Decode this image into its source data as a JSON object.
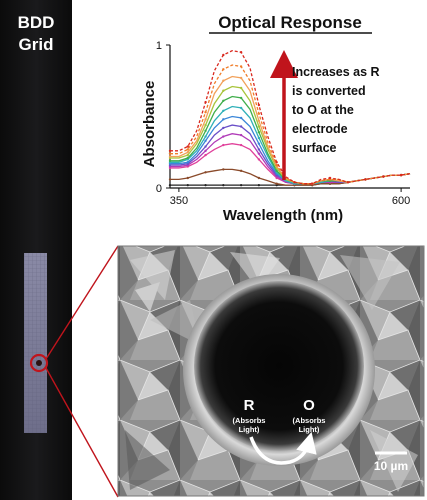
{
  "left_panel": {
    "title_line1": "BDD",
    "title_line2": "Grid"
  },
  "spectrum": {
    "title": "Optical Response",
    "ylabel": "Absorbance",
    "xlabel": "Wavelength (nm)",
    "annotation": [
      "Increases as R",
      "is converted",
      "to O at the",
      "electrode",
      "surface"
    ],
    "annotation_arrow_color": "#c0141c",
    "chart_data": {
      "type": "line",
      "xlabel": "Wavelength (nm)",
      "ylabel": "Absorbance",
      "title": "Optical Response",
      "x_tick_labels": [
        "350",
        "600"
      ],
      "y_tick_labels": [
        "0",
        "1"
      ],
      "xlim": [
        340,
        610
      ],
      "ylim": [
        0,
        1
      ],
      "x": [
        340,
        350,
        360,
        370,
        380,
        390,
        400,
        410,
        420,
        430,
        440,
        450,
        460,
        470,
        480,
        490,
        500,
        510,
        520,
        530,
        540,
        550,
        560,
        570,
        580,
        590,
        600,
        610
      ],
      "series": [
        {
          "color": "#d9281e",
          "values": [
            0.26,
            0.26,
            0.29,
            0.4,
            0.6,
            0.82,
            0.93,
            0.96,
            0.95,
            0.84,
            0.58,
            0.36,
            0.18,
            0.08,
            0.04,
            0.03,
            0.03,
            0.06,
            0.07,
            0.06,
            0.04,
            0.05,
            0.06,
            0.07,
            0.08,
            0.09,
            0.09,
            0.1
          ]
        },
        {
          "color": "#f07c28",
          "values": [
            0.24,
            0.24,
            0.27,
            0.36,
            0.53,
            0.73,
            0.83,
            0.86,
            0.85,
            0.75,
            0.52,
            0.32,
            0.16,
            0.07,
            0.04,
            0.03,
            0.03,
            0.05,
            0.06,
            0.06,
            0.04,
            0.05,
            0.06,
            0.07,
            0.08,
            0.09,
            0.09,
            0.1
          ]
        },
        {
          "color": "#f2a15a",
          "values": [
            0.22,
            0.22,
            0.25,
            0.33,
            0.48,
            0.66,
            0.75,
            0.78,
            0.77,
            0.68,
            0.47,
            0.29,
            0.15,
            0.07,
            0.04,
            0.03,
            0.03,
            0.05,
            0.06,
            0.05,
            0.04,
            0.05,
            0.06,
            0.07,
            0.08,
            0.09,
            0.09,
            0.1
          ]
        },
        {
          "color": "#a8c43a",
          "values": [
            0.21,
            0.21,
            0.23,
            0.31,
            0.44,
            0.59,
            0.68,
            0.71,
            0.7,
            0.61,
            0.43,
            0.27,
            0.14,
            0.06,
            0.04,
            0.03,
            0.03,
            0.05,
            0.06,
            0.05,
            0.04,
            0.05,
            0.06,
            0.07,
            0.08,
            0.09,
            0.09,
            0.1
          ]
        },
        {
          "color": "#3fae4a",
          "values": [
            0.19,
            0.19,
            0.21,
            0.28,
            0.4,
            0.53,
            0.61,
            0.64,
            0.63,
            0.55,
            0.39,
            0.24,
            0.12,
            0.06,
            0.04,
            0.03,
            0.03,
            0.05,
            0.05,
            0.05,
            0.04,
            0.05,
            0.06,
            0.07,
            0.08,
            0.09,
            0.09,
            0.1
          ]
        },
        {
          "color": "#2fb0b8",
          "values": [
            0.18,
            0.18,
            0.2,
            0.26,
            0.36,
            0.47,
            0.54,
            0.57,
            0.56,
            0.49,
            0.35,
            0.22,
            0.11,
            0.05,
            0.03,
            0.03,
            0.03,
            0.04,
            0.05,
            0.05,
            0.04,
            0.05,
            0.06,
            0.07,
            0.08,
            0.09,
            0.09,
            0.1
          ]
        },
        {
          "color": "#3a86d8",
          "values": [
            0.17,
            0.17,
            0.18,
            0.24,
            0.33,
            0.42,
            0.48,
            0.5,
            0.49,
            0.43,
            0.31,
            0.19,
            0.1,
            0.05,
            0.03,
            0.03,
            0.03,
            0.04,
            0.05,
            0.05,
            0.04,
            0.05,
            0.06,
            0.07,
            0.08,
            0.09,
            0.09,
            0.1
          ]
        },
        {
          "color": "#6a4fc8",
          "values": [
            0.16,
            0.16,
            0.17,
            0.22,
            0.29,
            0.37,
            0.42,
            0.44,
            0.43,
            0.38,
            0.27,
            0.17,
            0.09,
            0.05,
            0.03,
            0.03,
            0.03,
            0.04,
            0.05,
            0.04,
            0.04,
            0.05,
            0.06,
            0.07,
            0.08,
            0.09,
            0.09,
            0.1
          ]
        },
        {
          "color": "#b03ab8",
          "values": [
            0.15,
            0.15,
            0.16,
            0.2,
            0.26,
            0.32,
            0.36,
            0.38,
            0.37,
            0.33,
            0.24,
            0.15,
            0.08,
            0.04,
            0.03,
            0.03,
            0.03,
            0.04,
            0.04,
            0.04,
            0.04,
            0.05,
            0.06,
            0.07,
            0.08,
            0.09,
            0.09,
            0.1
          ]
        },
        {
          "color": "#e0409a",
          "values": [
            0.14,
            0.14,
            0.15,
            0.18,
            0.23,
            0.27,
            0.3,
            0.31,
            0.3,
            0.27,
            0.2,
            0.13,
            0.07,
            0.04,
            0.03,
            0.03,
            0.03,
            0.04,
            0.04,
            0.04,
            0.04,
            0.05,
            0.06,
            0.07,
            0.08,
            0.09,
            0.09,
            0.1
          ]
        },
        {
          "color": "#8a4a2a",
          "values": [
            0.06,
            0.06,
            0.07,
            0.09,
            0.11,
            0.12,
            0.13,
            0.13,
            0.12,
            0.1,
            0.07,
            0.05,
            0.03,
            0.02,
            0.02,
            0.02,
            0.02,
            0.03,
            0.03,
            0.03,
            0.04,
            0.05,
            0.06,
            0.07,
            0.08,
            0.09,
            0.09,
            0.1
          ]
        },
        {
          "color": "#222222",
          "values": [
            0.02,
            0.02,
            0.02,
            0.02,
            0.02,
            0.02,
            0.02,
            0.02,
            0.02,
            0.02,
            0.02,
            0.02,
            0.02,
            0.02,
            0.02,
            0.02,
            0.02,
            0.03,
            0.03,
            0.03,
            0.04,
            0.05,
            0.06,
            0.07,
            0.08,
            0.09,
            0.09,
            0.1
          ]
        }
      ]
    }
  },
  "sem": {
    "reactant": "R",
    "reactant_note_line1": "(Absorbs",
    "reactant_note_line2": "Light)",
    "product": "O",
    "product_note_line1": "(Absorbs",
    "product_note_line2": "Light)",
    "scale_bar_label": "10 µm",
    "callout_color": "#c0141c"
  }
}
